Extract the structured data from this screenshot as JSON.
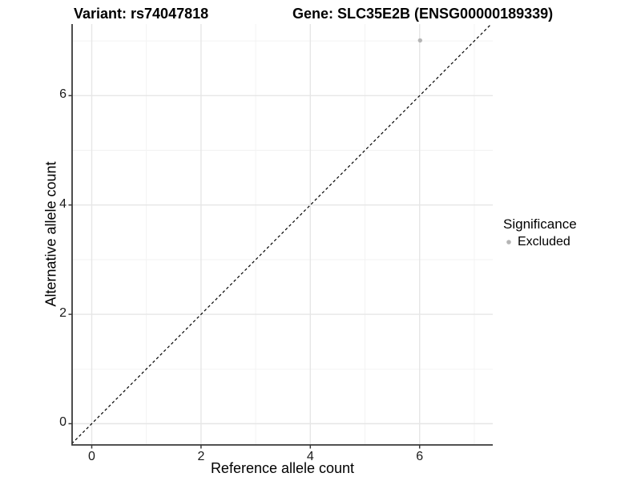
{
  "chart_data": {
    "type": "scatter",
    "title_left": "Variant: rs74047818",
    "title_right": "Gene: SLC35E2B (ENSG00000189339)",
    "xlabel": "Reference allele count",
    "ylabel": "Alternative allele count",
    "xlim": [
      -0.35,
      7.35
    ],
    "ylim": [
      -0.35,
      7.35
    ],
    "x_tick_values": [
      0,
      2,
      4,
      6
    ],
    "y_tick_values": [
      0,
      2,
      4,
      6
    ],
    "x_tick_labels": [
      "0",
      "2",
      "4",
      "6"
    ],
    "y_tick_labels": [
      "0",
      "2",
      "4",
      "6"
    ],
    "grid": "major gridlines at even values, minor at odd values, light gray on white",
    "points": [
      {
        "x": 6,
        "y": 7,
        "series": "Excluded"
      }
    ],
    "reference_line": {
      "style": "dashed",
      "equation": "y = x",
      "color": "#000000"
    },
    "legend": {
      "title": "Significance",
      "position": "right",
      "items": [
        {
          "label": "Excluded",
          "marker": "circle",
          "color": "#b5b5b5"
        }
      ]
    },
    "colors": {
      "point": "#b5b5b5",
      "major_grid": "#e6e6e6",
      "minor_grid": "#f2f2f2",
      "axis": "#3a3a3a",
      "text": "#000000",
      "background": "#ffffff"
    }
  }
}
